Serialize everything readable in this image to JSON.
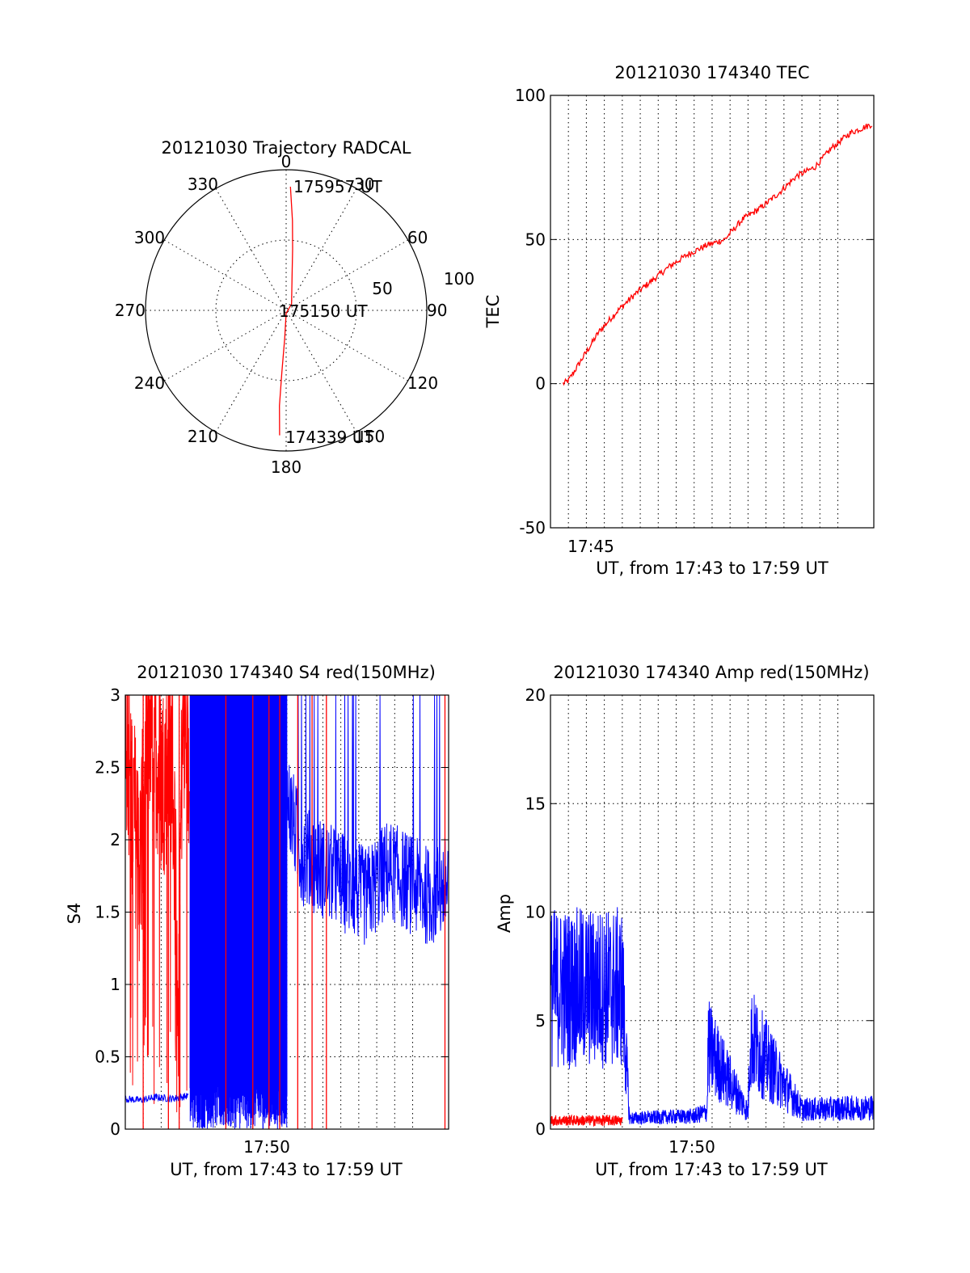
{
  "colors": {
    "red_series": "#ff0000",
    "blue_series": "#0000ff",
    "axis": "#000000"
  },
  "chart_data": [
    {
      "type": "polar",
      "title": "20121030 Trajectory RADCAL",
      "azimuth_labels": [
        "0",
        "30",
        "60",
        "90",
        "120",
        "150",
        "180",
        "210",
        "240",
        "270",
        "300",
        "330"
      ],
      "radial_labels": [
        "50",
        "100"
      ],
      "zenith_range": [
        0,
        100
      ],
      "grid": true,
      "trajectory_color": "#ff0000",
      "trajectory": [
        {
          "az": 2,
          "zen": 88
        },
        {
          "az": 4,
          "zen": 64
        },
        {
          "az": 6,
          "zen": 44
        },
        {
          "az": 10,
          "zen": 24
        },
        {
          "az": 40,
          "zen": 6
        },
        {
          "az": 180,
          "zen": 2
        },
        {
          "az": 183,
          "zen": 20
        },
        {
          "az": 184,
          "zen": 44
        },
        {
          "az": 184,
          "zen": 68
        },
        {
          "az": 183,
          "zen": 89
        }
      ],
      "annotations": [
        {
          "text": "175957 UT",
          "az": 3,
          "zen": 89
        },
        {
          "text": "175150 UT",
          "az": 0,
          "zen": 0
        },
        {
          "text": "174339 UT",
          "az": 183,
          "zen": 89
        }
      ]
    },
    {
      "type": "line",
      "title": "20121030 174340 TEC",
      "ylabel": "TEC",
      "xlabel": "UT, from 17:43 to 17:59 UT",
      "ylim": [
        -50,
        100
      ],
      "yticks": [
        "-50",
        "0",
        "50",
        "100"
      ],
      "xlim": [
        17.7167,
        18.0167
      ],
      "xtick_labels": [
        "17:45"
      ],
      "grid": true,
      "series": [
        {
          "color": "#ff0000",
          "x": [
            17.7283,
            17.7333,
            17.745,
            17.7617,
            17.7783,
            17.795,
            17.8117,
            17.8283,
            17.845,
            17.8617,
            17.8783,
            17.895,
            17.9117,
            17.9283,
            17.945,
            17.9617,
            17.9783,
            17.995,
            18.015
          ],
          "y": [
            0,
            1,
            8,
            18,
            25,
            31,
            36,
            41,
            45,
            48,
            50,
            57,
            61,
            66,
            72,
            75,
            82,
            87,
            90
          ]
        }
      ]
    },
    {
      "type": "line",
      "title": "20121030 174340 S4 red(150MHz)",
      "ylabel": "S4",
      "xlabel": "UT, from 17:43 to 17:59 UT",
      "ylim": [
        0,
        3
      ],
      "yticks": [
        "0",
        "0.5",
        "1",
        "1.5",
        "2",
        "2.5",
        "3"
      ],
      "xlim": [
        17.7167,
        18.0167
      ],
      "xtick_labels": [
        "17:50"
      ],
      "grid": true,
      "series": [
        {
          "color": "#ff0000",
          "x": [
            17.7167,
            17.73,
            17.74,
            17.75,
            17.76,
            17.766,
            17.77,
            17.776
          ],
          "y": [
            2.8,
            1.8,
            2.9,
            2.4,
            2.6,
            1.0,
            2.9,
            2.5
          ]
        },
        {
          "color": "#0000ff",
          "x": [
            17.7167,
            17.73,
            17.745,
            17.76,
            17.775
          ],
          "y": [
            0.21,
            0.2,
            0.22,
            0.21,
            0.23
          ]
        },
        {
          "color": "#0000ff",
          "x": [
            17.8,
            17.82,
            17.84,
            17.86,
            17.88,
            17.9,
            17.92,
            17.94,
            17.96,
            17.98,
            18.0,
            18.016
          ],
          "y": [
            3.0,
            2.9,
            3.0,
            2.5,
            1.9,
            1.8,
            1.7,
            1.6,
            1.8,
            1.7,
            1.6,
            1.7
          ]
        }
      ]
    },
    {
      "type": "line",
      "title": "20121030 174340 Amp red(150MHz)",
      "ylabel": "Amp",
      "xlabel": "UT, from 17:43 to 17:59 UT",
      "ylim": [
        0,
        20
      ],
      "yticks": [
        "0",
        "5",
        "10",
        "15",
        "20"
      ],
      "xlim": [
        17.7167,
        18.0167
      ],
      "xtick_labels": [
        "17:50"
      ],
      "grid": true,
      "series": [
        {
          "color": "#0000ff",
          "x": [
            17.7167,
            17.7833,
            17.79,
            17.85,
            17.862,
            17.863,
            17.9,
            17.902,
            17.95,
            18.016
          ],
          "y": [
            6.5,
            6.5,
            0.5,
            0.6,
            0.8,
            3.8,
            0.8,
            4.2,
            0.9,
            1.0
          ]
        },
        {
          "color": "#ff0000",
          "x": [
            17.7167,
            17.75,
            17.7833
          ],
          "y": [
            0.4,
            0.4,
            0.4
          ]
        }
      ]
    }
  ]
}
